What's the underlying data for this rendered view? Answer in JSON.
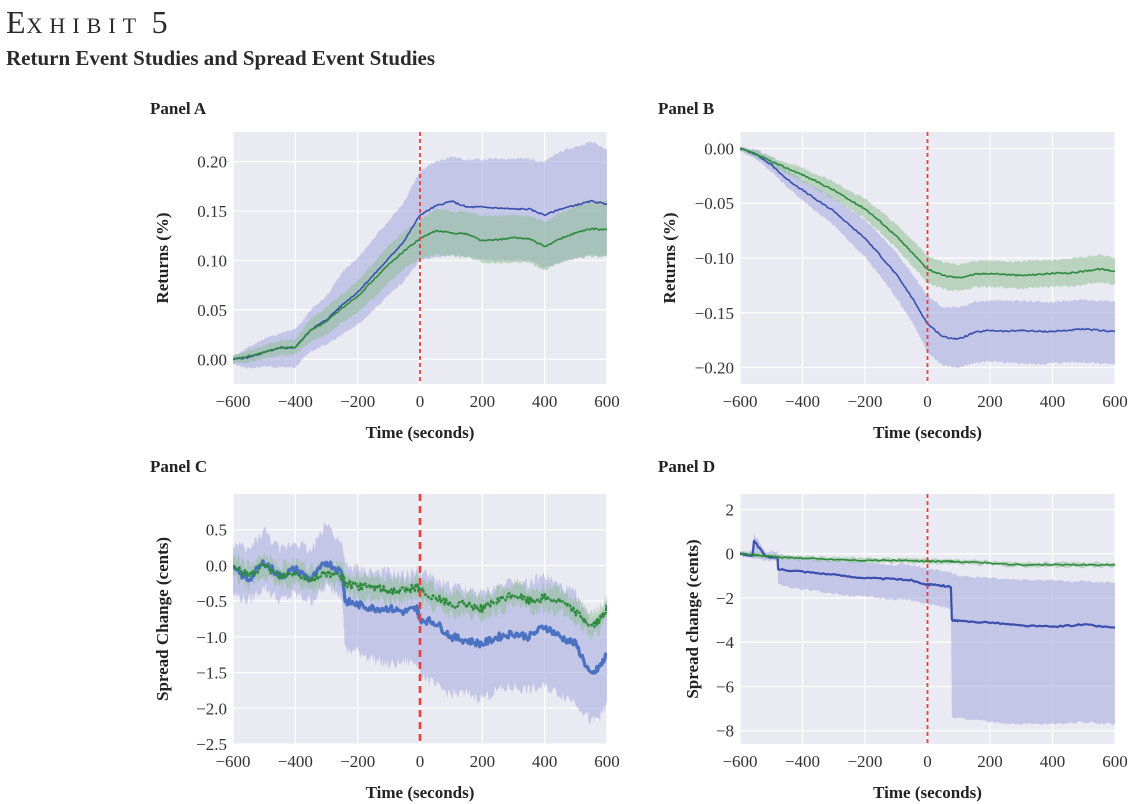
{
  "header": {
    "exhibit_first": "E",
    "exhibit_rest": "XHIBIT",
    "exhibit_number": "5",
    "subtitle": "Return Event Studies and Spread Event Studies"
  },
  "colors": {
    "background": "#eaeaf2",
    "grid": "#ffffff",
    "blue_line": "#3a4fae",
    "blue_band": "#a9aee0",
    "green_line": "#2e8b3e",
    "green_band": "#8fbf95",
    "event_line": "#e8403a",
    "panel_c_blue_line": "#4a72c0"
  },
  "chart_data": [
    {
      "id": "A",
      "type": "line",
      "title": "Panel A",
      "xlabel": "Time (seconds)",
      "ylabel": "Returns (%)",
      "xlim": [
        -600,
        600
      ],
      "ylim": [
        -0.025,
        0.23
      ],
      "xticks": [
        -600,
        -400,
        -200,
        0,
        200,
        400,
        600
      ],
      "xtick_labels": [
        "−600",
        "−400",
        "−200",
        "0",
        "200",
        "400",
        "600"
      ],
      "yticks": [
        0.0,
        0.05,
        0.1,
        0.15,
        0.2
      ],
      "ytick_labels": [
        "0.00",
        "0.05",
        "0.10",
        "0.15",
        "0.20"
      ],
      "grid": true,
      "event_line_x": 0,
      "x": [
        -600,
        -550,
        -500,
        -450,
        -400,
        -350,
        -300,
        -250,
        -200,
        -150,
        -100,
        -50,
        0,
        50,
        100,
        150,
        200,
        250,
        300,
        350,
        400,
        450,
        500,
        550,
        600
      ],
      "series": [
        {
          "name": "blue",
          "color": "#3a4fae",
          "values": [
            0.0,
            0.002,
            0.007,
            0.011,
            0.012,
            0.03,
            0.04,
            0.055,
            0.068,
            0.085,
            0.102,
            0.12,
            0.146,
            0.155,
            0.16,
            0.154,
            0.154,
            0.153,
            0.152,
            0.152,
            0.146,
            0.152,
            0.156,
            0.16,
            0.157
          ],
          "lower": [
            -0.005,
            -0.009,
            -0.007,
            -0.008,
            -0.008,
            0.008,
            0.015,
            0.025,
            0.035,
            0.05,
            0.065,
            0.08,
            0.1,
            0.103,
            0.105,
            0.104,
            0.101,
            0.1,
            0.1,
            0.1,
            0.093,
            0.098,
            0.102,
            0.106,
            0.104
          ],
          "upper": [
            0.003,
            0.012,
            0.021,
            0.026,
            0.03,
            0.05,
            0.064,
            0.088,
            0.102,
            0.122,
            0.14,
            0.16,
            0.19,
            0.2,
            0.205,
            0.202,
            0.202,
            0.203,
            0.203,
            0.203,
            0.2,
            0.21,
            0.215,
            0.22,
            0.213
          ]
        },
        {
          "name": "green",
          "color": "#2e8b3e",
          "values": [
            0.0,
            0.003,
            0.007,
            0.012,
            0.012,
            0.03,
            0.038,
            0.052,
            0.064,
            0.08,
            0.096,
            0.11,
            0.122,
            0.13,
            0.128,
            0.127,
            0.12,
            0.121,
            0.123,
            0.122,
            0.114,
            0.122,
            0.128,
            0.132,
            0.131
          ],
          "lower": [
            -0.004,
            -0.003,
            0.001,
            0.004,
            0.005,
            0.018,
            0.025,
            0.037,
            0.047,
            0.062,
            0.077,
            0.092,
            0.102,
            0.106,
            0.105,
            0.103,
            0.098,
            0.097,
            0.098,
            0.098,
            0.09,
            0.098,
            0.102,
            0.104,
            0.104
          ],
          "upper": [
            0.003,
            0.009,
            0.014,
            0.019,
            0.02,
            0.042,
            0.052,
            0.066,
            0.08,
            0.097,
            0.115,
            0.13,
            0.14,
            0.152,
            0.15,
            0.15,
            0.145,
            0.145,
            0.146,
            0.145,
            0.139,
            0.148,
            0.155,
            0.16,
            0.16
          ]
        }
      ]
    },
    {
      "id": "B",
      "type": "line",
      "title": "Panel B",
      "xlabel": "Time (seconds)",
      "ylabel": "Returns (%)",
      "xlim": [
        -600,
        600
      ],
      "ylim": [
        -0.215,
        0.015
      ],
      "xticks": [
        -600,
        -400,
        -200,
        0,
        200,
        400,
        600
      ],
      "xtick_labels": [
        "−600",
        "−400",
        "−200",
        "0",
        "200",
        "400",
        "600"
      ],
      "yticks": [
        0.0,
        -0.05,
        -0.1,
        -0.15,
        -0.2
      ],
      "ytick_labels": [
        "0.00",
        "−0.05",
        "−0.10",
        "−0.15",
        "−0.20"
      ],
      "grid": true,
      "event_line_x": 0,
      "x": [
        -600,
        -550,
        -500,
        -450,
        -400,
        -350,
        -300,
        -250,
        -200,
        -150,
        -100,
        -50,
        0,
        50,
        100,
        150,
        200,
        250,
        300,
        350,
        400,
        450,
        500,
        550,
        600
      ],
      "series": [
        {
          "name": "blue",
          "color": "#3a4fae",
          "values": [
            0.0,
            -0.005,
            -0.015,
            -0.028,
            -0.038,
            -0.048,
            -0.057,
            -0.07,
            -0.082,
            -0.098,
            -0.115,
            -0.136,
            -0.16,
            -0.172,
            -0.174,
            -0.168,
            -0.166,
            -0.167,
            -0.166,
            -0.167,
            -0.167,
            -0.166,
            -0.165,
            -0.166,
            -0.167
          ],
          "lower": [
            -0.002,
            -0.009,
            -0.021,
            -0.035,
            -0.047,
            -0.059,
            -0.07,
            -0.085,
            -0.099,
            -0.117,
            -0.136,
            -0.158,
            -0.186,
            -0.198,
            -0.2,
            -0.196,
            -0.194,
            -0.196,
            -0.196,
            -0.197,
            -0.196,
            -0.195,
            -0.195,
            -0.196,
            -0.197
          ],
          "upper": [
            0.001,
            -0.001,
            -0.008,
            -0.02,
            -0.029,
            -0.037,
            -0.045,
            -0.055,
            -0.065,
            -0.08,
            -0.095,
            -0.114,
            -0.135,
            -0.145,
            -0.145,
            -0.14,
            -0.139,
            -0.139,
            -0.139,
            -0.14,
            -0.14,
            -0.139,
            -0.138,
            -0.139,
            -0.14
          ]
        },
        {
          "name": "green",
          "color": "#2e8b3e",
          "values": [
            0.0,
            -0.005,
            -0.012,
            -0.018,
            -0.024,
            -0.031,
            -0.038,
            -0.047,
            -0.055,
            -0.067,
            -0.08,
            -0.095,
            -0.11,
            -0.116,
            -0.118,
            -0.115,
            -0.114,
            -0.115,
            -0.116,
            -0.115,
            -0.114,
            -0.114,
            -0.112,
            -0.11,
            -0.112
          ],
          "lower": [
            -0.002,
            -0.008,
            -0.016,
            -0.023,
            -0.03,
            -0.038,
            -0.046,
            -0.055,
            -0.064,
            -0.077,
            -0.091,
            -0.107,
            -0.123,
            -0.128,
            -0.13,
            -0.127,
            -0.126,
            -0.127,
            -0.128,
            -0.127,
            -0.126,
            -0.126,
            -0.124,
            -0.122,
            -0.124
          ],
          "upper": [
            0.001,
            -0.002,
            -0.008,
            -0.013,
            -0.018,
            -0.024,
            -0.03,
            -0.039,
            -0.046,
            -0.057,
            -0.069,
            -0.083,
            -0.098,
            -0.104,
            -0.106,
            -0.103,
            -0.102,
            -0.103,
            -0.103,
            -0.102,
            -0.102,
            -0.101,
            -0.099,
            -0.097,
            -0.1
          ]
        }
      ]
    },
    {
      "id": "C",
      "type": "line",
      "title": "Panel C",
      "xlabel": "Time (seconds)",
      "ylabel": "Spread Change (cents)",
      "xlim": [
        -600,
        600
      ],
      "ylim": [
        -2.5,
        1.0
      ],
      "xticks": [
        -600,
        -400,
        -200,
        0,
        200,
        400,
        600
      ],
      "xtick_labels": [
        "−600",
        "−400",
        "−200",
        "0",
        "200",
        "400",
        "600"
      ],
      "yticks": [
        0.5,
        0.0,
        -0.5,
        -1.0,
        -1.5,
        -2.0,
        -2.5
      ],
      "ytick_labels": [
        "0.5",
        "0.0",
        "−0.5",
        "−1.0",
        "−1.5",
        "−2.0",
        "−2.5"
      ],
      "grid": true,
      "event_line_x": 0,
      "x": [
        -600,
        -550,
        -500,
        -450,
        -400,
        -350,
        -300,
        -250,
        -240,
        -200,
        -150,
        -100,
        -50,
        -10,
        0,
        50,
        100,
        150,
        200,
        250,
        300,
        350,
        400,
        450,
        500,
        550,
        580,
        600
      ],
      "series": [
        {
          "name": "blue",
          "color": "#4a72c0",
          "values": [
            -0.05,
            -0.2,
            0.05,
            -0.15,
            -0.05,
            -0.2,
            0.05,
            -0.1,
            -0.5,
            -0.55,
            -0.6,
            -0.6,
            -0.65,
            -0.6,
            -0.75,
            -0.8,
            -1.0,
            -1.05,
            -1.1,
            -1.0,
            -0.95,
            -1.0,
            -0.85,
            -1.0,
            -1.1,
            -1.55,
            -1.4,
            -1.25
          ],
          "lower": [
            -0.4,
            -0.5,
            -0.3,
            -0.5,
            -0.4,
            -0.5,
            -0.3,
            -0.4,
            -1.2,
            -1.2,
            -1.3,
            -1.4,
            -1.35,
            -1.35,
            -1.5,
            -1.7,
            -1.8,
            -1.8,
            -1.85,
            -1.75,
            -1.7,
            -1.75,
            -1.7,
            -1.8,
            -1.9,
            -2.2,
            -2.1,
            -1.95
          ],
          "upper": [
            0.3,
            0.2,
            0.5,
            0.2,
            0.35,
            0.2,
            0.6,
            0.3,
            0.0,
            -0.05,
            -0.1,
            -0.1,
            -0.15,
            -0.05,
            -0.1,
            -0.2,
            -0.3,
            -0.35,
            -0.4,
            -0.3,
            -0.2,
            -0.25,
            -0.15,
            -0.3,
            -0.4,
            -0.8,
            -0.7,
            -0.5
          ]
        },
        {
          "name": "green",
          "color": "#2e8b3e",
          "values": [
            0.0,
            -0.15,
            0.0,
            -0.15,
            -0.1,
            -0.2,
            -0.1,
            -0.15,
            -0.25,
            -0.3,
            -0.3,
            -0.35,
            -0.35,
            -0.3,
            -0.35,
            -0.45,
            -0.55,
            -0.55,
            -0.6,
            -0.5,
            -0.4,
            -0.5,
            -0.45,
            -0.5,
            -0.65,
            -0.85,
            -0.75,
            -0.6
          ],
          "lower": [
            -0.15,
            -0.3,
            -0.15,
            -0.3,
            -0.25,
            -0.35,
            -0.25,
            -0.3,
            -0.4,
            -0.45,
            -0.45,
            -0.5,
            -0.5,
            -0.45,
            -0.5,
            -0.6,
            -0.7,
            -0.7,
            -0.75,
            -0.65,
            -0.55,
            -0.65,
            -0.6,
            -0.65,
            -0.8,
            -1.0,
            -0.9,
            -0.75
          ],
          "upper": [
            0.15,
            0.0,
            0.15,
            0.0,
            0.05,
            -0.05,
            0.05,
            0.0,
            -0.1,
            -0.15,
            -0.15,
            -0.2,
            -0.2,
            -0.15,
            -0.2,
            -0.3,
            -0.4,
            -0.4,
            -0.45,
            -0.35,
            -0.25,
            -0.35,
            -0.3,
            -0.35,
            -0.5,
            -0.7,
            -0.6,
            -0.45
          ]
        }
      ]
    },
    {
      "id": "D",
      "type": "line",
      "title": "Panel D",
      "xlabel": "Time (seconds)",
      "ylabel": "Spread change (cents)",
      "xlim": [
        -600,
        600
      ],
      "ylim": [
        -8.6,
        2.7
      ],
      "xticks": [
        -600,
        -400,
        -200,
        0,
        200,
        400,
        600
      ],
      "xtick_labels": [
        "−600",
        "−400",
        "−200",
        "0",
        "200",
        "400",
        "600"
      ],
      "yticks": [
        2,
        0,
        -2,
        -4,
        -6,
        -8
      ],
      "ytick_labels": [
        "2",
        "0",
        "−2",
        "−4",
        "−6",
        "−8"
      ],
      "grid": true,
      "event_line_x": 0,
      "x": [
        -600,
        -560,
        -555,
        -520,
        -480,
        -478,
        -400,
        -300,
        -200,
        -100,
        -50,
        0,
        10,
        50,
        75,
        78,
        100,
        200,
        300,
        400,
        500,
        600
      ],
      "series": [
        {
          "name": "blue",
          "color": "#3a4fae",
          "values": [
            0.0,
            -0.1,
            0.6,
            -0.1,
            -0.2,
            -0.7,
            -0.8,
            -0.95,
            -1.1,
            -1.15,
            -1.2,
            -1.4,
            -1.4,
            -1.45,
            -1.5,
            -3.0,
            -3.05,
            -3.1,
            -3.25,
            -3.3,
            -3.2,
            -3.35
          ],
          "lower": [
            -0.1,
            -0.2,
            -0.2,
            -0.3,
            -0.3,
            -1.4,
            -1.6,
            -1.8,
            -1.95,
            -2.05,
            -2.1,
            -2.3,
            -2.3,
            -2.4,
            -2.5,
            -7.4,
            -7.45,
            -7.6,
            -7.7,
            -7.7,
            -7.6,
            -7.7
          ],
          "upper": [
            0.1,
            0.1,
            0.9,
            0.1,
            0.1,
            0.0,
            -0.2,
            -0.3,
            -0.4,
            -0.5,
            -0.5,
            -0.7,
            -0.7,
            -0.8,
            -0.8,
            -0.9,
            -1.0,
            -1.1,
            -1.2,
            -1.2,
            -1.25,
            -1.3
          ]
        },
        {
          "name": "green",
          "color": "#2e8b3e",
          "values": [
            0.0,
            -0.05,
            -0.05,
            -0.1,
            -0.15,
            -0.15,
            -0.2,
            -0.25,
            -0.3,
            -0.3,
            -0.32,
            -0.35,
            -0.35,
            -0.35,
            -0.35,
            -0.35,
            -0.37,
            -0.42,
            -0.5,
            -0.5,
            -0.5,
            -0.5
          ],
          "lower": [
            -0.1,
            -0.15,
            -0.15,
            -0.2,
            -0.25,
            -0.25,
            -0.3,
            -0.35,
            -0.4,
            -0.4,
            -0.42,
            -0.45,
            -0.45,
            -0.45,
            -0.45,
            -0.45,
            -0.47,
            -0.52,
            -0.6,
            -0.6,
            -0.6,
            -0.6
          ],
          "upper": [
            0.1,
            0.05,
            0.05,
            0.0,
            -0.05,
            -0.05,
            -0.1,
            -0.15,
            -0.2,
            -0.2,
            -0.22,
            -0.25,
            -0.25,
            -0.25,
            -0.25,
            -0.25,
            -0.27,
            -0.32,
            -0.4,
            -0.4,
            -0.4,
            -0.4
          ]
        }
      ]
    }
  ]
}
